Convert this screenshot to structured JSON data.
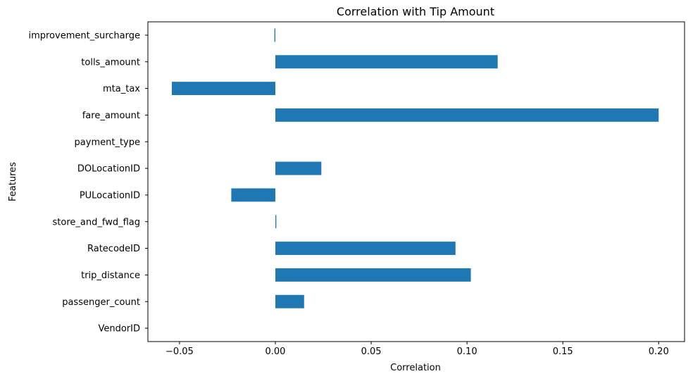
{
  "chart_data": {
    "type": "bar",
    "orientation": "horizontal",
    "title": "Correlation with Tip Amount",
    "xlabel": "Correlation",
    "ylabel": "Features",
    "categories": [
      "VendorID",
      "passenger_count",
      "trip_distance",
      "RatecodeID",
      "store_and_fwd_flag",
      "PULocationID",
      "DOLocationID",
      "payment_type",
      "fare_amount",
      "mta_tax",
      "tolls_amount",
      "improvement_surcharge"
    ],
    "values": [
      0.0,
      0.015,
      0.102,
      0.094,
      0.0005,
      -0.023,
      0.024,
      0.0,
      0.2,
      -0.054,
      0.116,
      -0.0005
    ],
    "xlim": [
      -0.0665,
      0.2135
    ],
    "xticks": [
      -0.05,
      0.0,
      0.05,
      0.1,
      0.15,
      0.2
    ],
    "xtick_labels": [
      "−0.05",
      "0.00",
      "0.05",
      "0.10",
      "0.15",
      "0.20"
    ],
    "bar_color": "#1f77b4",
    "grid": false,
    "legend": "none"
  }
}
